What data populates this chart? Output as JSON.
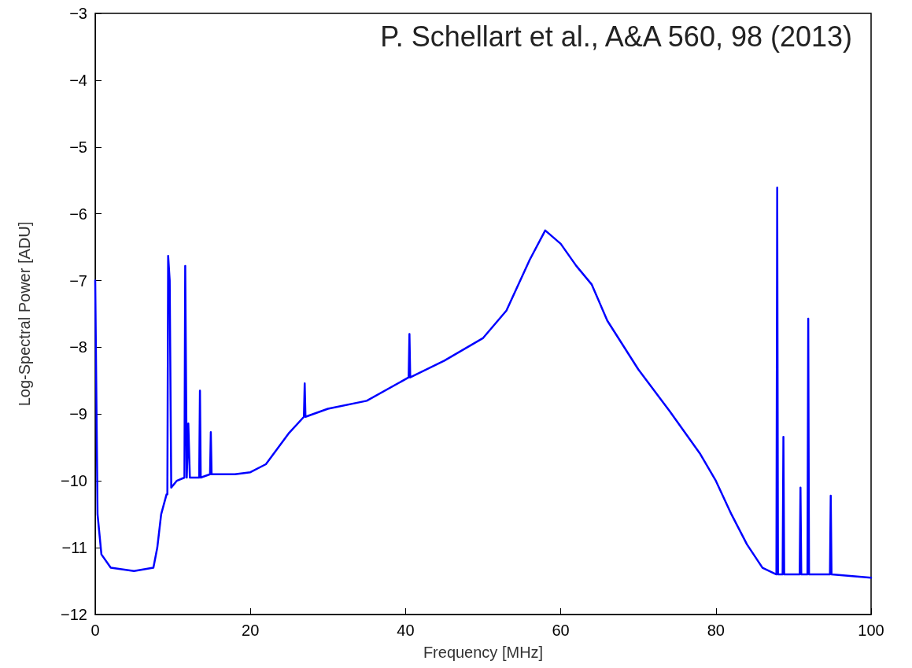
{
  "chart_data": {
    "type": "line",
    "xlabel": "Frequency [MHz]",
    "ylabel": "Log-Spectral Power [ADU]",
    "annotations": [
      "P. Schellart et al., A&A 560, 98 (2013)"
    ],
    "xlim": [
      0,
      100
    ],
    "xticks": [
      0,
      20,
      40,
      60,
      80,
      100
    ],
    "ylim": [
      -12,
      -3
    ],
    "yticks": [
      -12,
      -11,
      -10,
      -9,
      -8,
      -7,
      -6,
      -5,
      -4,
      -3
    ],
    "grid": false,
    "marker": "none",
    "line_style": "solid",
    "series": [
      {
        "color": "#0000ff",
        "x": [
          0,
          0.3,
          0.8,
          2,
          5,
          7.5,
          8,
          8.5,
          9.2,
          9.3,
          9.4,
          9.6,
          9.8,
          10.5,
          11.5,
          11.6,
          11.8,
          12.0,
          12.2,
          13.4,
          13.5,
          13.6,
          14.8,
          14.9,
          15.0,
          18,
          20,
          22,
          25,
          26.9,
          27.0,
          27.1,
          30,
          35,
          40.4,
          40.5,
          40.6,
          45,
          50,
          53,
          56,
          58,
          60,
          62,
          64,
          66,
          70,
          74,
          78,
          80,
          82,
          84,
          86,
          87.8,
          87.9,
          88.0,
          88.6,
          88.7,
          88.8,
          90.8,
          90.9,
          91.0,
          91.8,
          91.9,
          92.0,
          94.7,
          94.8,
          94.9,
          100
        ],
        "values": [
          -7.0,
          -10.5,
          -11.1,
          -11.3,
          -11.35,
          -11.3,
          -11.0,
          -10.5,
          -10.2,
          -10.2,
          -6.63,
          -7.0,
          -10.1,
          -10.0,
          -9.95,
          -6.78,
          -9.95,
          -9.14,
          -9.95,
          -9.95,
          -8.65,
          -9.95,
          -9.9,
          -9.27,
          -9.9,
          -9.9,
          -9.87,
          -9.75,
          -9.28,
          -9.04,
          -8.54,
          -9.04,
          -8.92,
          -8.8,
          -8.45,
          -7.8,
          -8.45,
          -8.2,
          -7.86,
          -7.45,
          -6.69,
          -6.25,
          -6.45,
          -6.78,
          -7.06,
          -7.6,
          -8.33,
          -8.95,
          -9.6,
          -10.0,
          -10.5,
          -10.95,
          -11.3,
          -11.4,
          -5.61,
          -11.4,
          -11.4,
          -9.34,
          -11.4,
          -11.4,
          -10.1,
          -11.4,
          -11.4,
          -7.57,
          -11.4,
          -11.4,
          -10.22,
          -11.4,
          -11.45
        ]
      }
    ]
  }
}
